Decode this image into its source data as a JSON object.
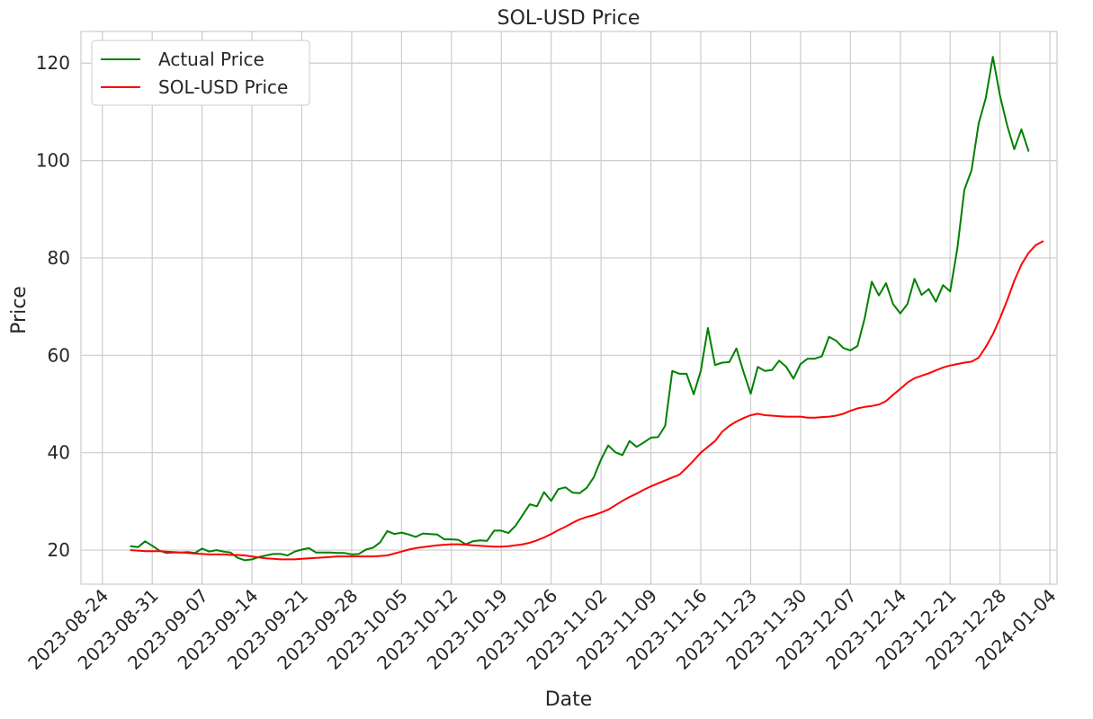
{
  "chart_data": {
    "type": "line",
    "title": "SOL-USD Price",
    "xlabel": "Date",
    "ylabel": "Price",
    "x_ticks": [
      "2023-08-24",
      "2023-08-31",
      "2023-09-07",
      "2023-09-14",
      "2023-09-21",
      "2023-09-28",
      "2023-10-05",
      "2023-10-12",
      "2023-10-19",
      "2023-10-26",
      "2023-11-02",
      "2023-11-09",
      "2023-11-16",
      "2023-11-23",
      "2023-11-30",
      "2023-12-07",
      "2023-12-14",
      "2023-12-21",
      "2023-12-28",
      "2024-01-04"
    ],
    "y_ticks": [
      20,
      40,
      60,
      80,
      100,
      120
    ],
    "xlim": [
      "2023-08-21",
      "2024-01-05"
    ],
    "ylim": [
      13,
      126.5
    ],
    "grid": true,
    "legend_position": "top-left",
    "series": [
      {
        "name": "Actual Price",
        "color": "#008000",
        "points": [
          [
            "2023-08-28",
            20.8
          ],
          [
            "2023-08-29",
            20.6
          ],
          [
            "2023-08-30",
            21.8
          ],
          [
            "2023-08-31",
            20.9
          ],
          [
            "2023-09-01",
            19.9
          ],
          [
            "2023-09-02",
            19.4
          ],
          [
            "2023-09-03",
            19.5
          ],
          [
            "2023-09-04",
            19.5
          ],
          [
            "2023-09-05",
            19.6
          ],
          [
            "2023-09-06",
            19.4
          ],
          [
            "2023-09-07",
            20.3
          ],
          [
            "2023-09-08",
            19.7
          ],
          [
            "2023-09-09",
            20.0
          ],
          [
            "2023-09-10",
            19.7
          ],
          [
            "2023-09-11",
            19.5
          ],
          [
            "2023-09-12",
            18.4
          ],
          [
            "2023-09-13",
            17.9
          ],
          [
            "2023-09-14",
            18.1
          ],
          [
            "2023-09-15",
            18.6
          ],
          [
            "2023-09-16",
            18.9
          ],
          [
            "2023-09-17",
            19.2
          ],
          [
            "2023-09-18",
            19.2
          ],
          [
            "2023-09-19",
            18.9
          ],
          [
            "2023-09-20",
            19.7
          ],
          [
            "2023-09-21",
            20.1
          ],
          [
            "2023-09-22",
            20.4
          ],
          [
            "2023-09-23",
            19.5
          ],
          [
            "2023-09-24",
            19.5
          ],
          [
            "2023-09-25",
            19.5
          ],
          [
            "2023-09-26",
            19.4
          ],
          [
            "2023-09-27",
            19.4
          ],
          [
            "2023-09-28",
            19.1
          ],
          [
            "2023-09-29",
            19.2
          ],
          [
            "2023-09-30",
            20.1
          ],
          [
            "2023-10-01",
            20.5
          ],
          [
            "2023-10-02",
            21.6
          ],
          [
            "2023-10-03",
            23.9
          ],
          [
            "2023-10-04",
            23.3
          ],
          [
            "2023-10-05",
            23.6
          ],
          [
            "2023-10-06",
            23.2
          ],
          [
            "2023-10-07",
            22.7
          ],
          [
            "2023-10-08",
            23.4
          ],
          [
            "2023-10-09",
            23.3
          ],
          [
            "2023-10-10",
            23.2
          ],
          [
            "2023-10-11",
            22.2
          ],
          [
            "2023-10-12",
            22.2
          ],
          [
            "2023-10-13",
            22.1
          ],
          [
            "2023-10-14",
            21.2
          ],
          [
            "2023-10-15",
            21.8
          ],
          [
            "2023-10-16",
            22.0
          ],
          [
            "2023-10-17",
            21.9
          ],
          [
            "2023-10-18",
            24.0
          ],
          [
            "2023-10-19",
            24.0
          ],
          [
            "2023-10-20",
            23.5
          ],
          [
            "2023-10-21",
            25.0
          ],
          [
            "2023-10-22",
            27.2
          ],
          [
            "2023-10-23",
            29.4
          ],
          [
            "2023-10-24",
            29.0
          ],
          [
            "2023-10-25",
            31.9
          ],
          [
            "2023-10-26",
            30.1
          ],
          [
            "2023-10-27",
            32.5
          ],
          [
            "2023-10-28",
            32.9
          ],
          [
            "2023-10-29",
            31.8
          ],
          [
            "2023-10-30",
            31.7
          ],
          [
            "2023-10-31",
            32.8
          ],
          [
            "2023-11-01",
            35.0
          ],
          [
            "2023-11-02",
            38.6
          ],
          [
            "2023-11-03",
            41.5
          ],
          [
            "2023-11-04",
            40.1
          ],
          [
            "2023-11-05",
            39.5
          ],
          [
            "2023-11-06",
            42.4
          ],
          [
            "2023-11-07",
            41.2
          ],
          [
            "2023-11-08",
            42.1
          ],
          [
            "2023-11-09",
            43.1
          ],
          [
            "2023-11-10",
            43.2
          ],
          [
            "2023-11-11",
            45.5
          ],
          [
            "2023-11-12",
            56.8
          ],
          [
            "2023-11-13",
            56.2
          ],
          [
            "2023-11-14",
            56.2
          ],
          [
            "2023-11-15",
            52.0
          ],
          [
            "2023-11-16",
            56.8
          ],
          [
            "2023-11-17",
            65.6
          ],
          [
            "2023-11-18",
            58.0
          ],
          [
            "2023-11-19",
            58.5
          ],
          [
            "2023-11-20",
            58.6
          ],
          [
            "2023-11-21",
            61.4
          ],
          [
            "2023-11-22",
            56.6
          ],
          [
            "2023-11-23",
            52.1
          ],
          [
            "2023-11-24",
            57.6
          ],
          [
            "2023-11-25",
            56.8
          ],
          [
            "2023-11-26",
            57.0
          ],
          [
            "2023-11-27",
            58.9
          ],
          [
            "2023-11-28",
            57.6
          ],
          [
            "2023-11-29",
            55.2
          ],
          [
            "2023-11-30",
            58.2
          ],
          [
            "2023-12-01",
            59.3
          ],
          [
            "2023-12-02",
            59.3
          ],
          [
            "2023-12-03",
            59.8
          ],
          [
            "2023-12-04",
            63.8
          ],
          [
            "2023-12-05",
            63.0
          ],
          [
            "2023-12-06",
            61.5
          ],
          [
            "2023-12-07",
            61.0
          ],
          [
            "2023-12-08",
            61.9
          ],
          [
            "2023-12-09",
            67.6
          ],
          [
            "2023-12-10",
            75.1
          ],
          [
            "2023-12-11",
            72.3
          ],
          [
            "2023-12-12",
            74.8
          ],
          [
            "2023-12-13",
            70.5
          ],
          [
            "2023-12-14",
            68.6
          ],
          [
            "2023-12-15",
            70.5
          ],
          [
            "2023-12-16",
            75.7
          ],
          [
            "2023-12-17",
            72.4
          ],
          [
            "2023-12-18",
            73.6
          ],
          [
            "2023-12-19",
            71.0
          ],
          [
            "2023-12-20",
            74.4
          ],
          [
            "2023-12-21",
            73.1
          ],
          [
            "2023-12-22",
            81.8
          ],
          [
            "2023-12-23",
            94.0
          ],
          [
            "2023-12-24",
            98.0
          ],
          [
            "2023-12-25",
            107.6
          ],
          [
            "2023-12-26",
            112.8
          ],
          [
            "2023-12-27",
            121.3
          ],
          [
            "2023-12-28",
            113.3
          ],
          [
            "2023-12-29",
            107.2
          ],
          [
            "2023-12-30",
            102.3
          ],
          [
            "2023-12-31",
            106.4
          ],
          [
            "2024-01-01",
            102.0
          ]
        ]
      },
      {
        "name": "SOL-USD Price",
        "color": "#ff0000",
        "points": [
          [
            "2023-08-28",
            20.0
          ],
          [
            "2023-08-29",
            19.9
          ],
          [
            "2023-08-30",
            19.8
          ],
          [
            "2023-08-31",
            19.8
          ],
          [
            "2023-09-01",
            19.8
          ],
          [
            "2023-09-02",
            19.7
          ],
          [
            "2023-09-03",
            19.6
          ],
          [
            "2023-09-04",
            19.5
          ],
          [
            "2023-09-05",
            19.4
          ],
          [
            "2023-09-06",
            19.3
          ],
          [
            "2023-09-07",
            19.2
          ],
          [
            "2023-09-08",
            19.1
          ],
          [
            "2023-09-09",
            19.1
          ],
          [
            "2023-09-10",
            19.1
          ],
          [
            "2023-09-11",
            19.0
          ],
          [
            "2023-09-12",
            19.0
          ],
          [
            "2023-09-13",
            18.9
          ],
          [
            "2023-09-14",
            18.7
          ],
          [
            "2023-09-15",
            18.5
          ],
          [
            "2023-09-16",
            18.3
          ],
          [
            "2023-09-17",
            18.2
          ],
          [
            "2023-09-18",
            18.1
          ],
          [
            "2023-09-19",
            18.1
          ],
          [
            "2023-09-20",
            18.1
          ],
          [
            "2023-09-21",
            18.2
          ],
          [
            "2023-09-22",
            18.3
          ],
          [
            "2023-09-23",
            18.4
          ],
          [
            "2023-09-24",
            18.5
          ],
          [
            "2023-09-25",
            18.6
          ],
          [
            "2023-09-26",
            18.7
          ],
          [
            "2023-09-27",
            18.7
          ],
          [
            "2023-09-28",
            18.7
          ],
          [
            "2023-09-29",
            18.7
          ],
          [
            "2023-09-30",
            18.7
          ],
          [
            "2023-10-01",
            18.7
          ],
          [
            "2023-10-02",
            18.8
          ],
          [
            "2023-10-03",
            18.9
          ],
          [
            "2023-10-04",
            19.3
          ],
          [
            "2023-10-05",
            19.7
          ],
          [
            "2023-10-06",
            20.1
          ],
          [
            "2023-10-07",
            20.4
          ],
          [
            "2023-10-08",
            20.6
          ],
          [
            "2023-10-09",
            20.8
          ],
          [
            "2023-10-10",
            21.0
          ],
          [
            "2023-10-11",
            21.1
          ],
          [
            "2023-10-12",
            21.2
          ],
          [
            "2023-10-13",
            21.2
          ],
          [
            "2023-10-14",
            21.1
          ],
          [
            "2023-10-15",
            21.0
          ],
          [
            "2023-10-16",
            20.9
          ],
          [
            "2023-10-17",
            20.8
          ],
          [
            "2023-10-18",
            20.7
          ],
          [
            "2023-10-19",
            20.7
          ],
          [
            "2023-10-20",
            20.8
          ],
          [
            "2023-10-21",
            21.0
          ],
          [
            "2023-10-22",
            21.2
          ],
          [
            "2023-10-23",
            21.5
          ],
          [
            "2023-10-24",
            22.0
          ],
          [
            "2023-10-25",
            22.6
          ],
          [
            "2023-10-26",
            23.3
          ],
          [
            "2023-10-27",
            24.1
          ],
          [
            "2023-10-28",
            24.8
          ],
          [
            "2023-10-29",
            25.6
          ],
          [
            "2023-10-30",
            26.3
          ],
          [
            "2023-10-31",
            26.8
          ],
          [
            "2023-11-01",
            27.2
          ],
          [
            "2023-11-02",
            27.7
          ],
          [
            "2023-11-03",
            28.3
          ],
          [
            "2023-11-04",
            29.2
          ],
          [
            "2023-11-05",
            30.1
          ],
          [
            "2023-11-06",
            30.9
          ],
          [
            "2023-11-07",
            31.6
          ],
          [
            "2023-11-08",
            32.4
          ],
          [
            "2023-11-09",
            33.1
          ],
          [
            "2023-11-10",
            33.7
          ],
          [
            "2023-11-11",
            34.3
          ],
          [
            "2023-11-12",
            34.9
          ],
          [
            "2023-11-13",
            35.5
          ],
          [
            "2023-11-14",
            36.9
          ],
          [
            "2023-11-15",
            38.4
          ],
          [
            "2023-11-16",
            40.0
          ],
          [
            "2023-11-17",
            41.2
          ],
          [
            "2023-11-18",
            42.4
          ],
          [
            "2023-11-19",
            44.3
          ],
          [
            "2023-11-20",
            45.5
          ],
          [
            "2023-11-21",
            46.4
          ],
          [
            "2023-11-22",
            47.1
          ],
          [
            "2023-11-23",
            47.7
          ],
          [
            "2023-11-24",
            48.0
          ],
          [
            "2023-11-25",
            47.7
          ],
          [
            "2023-11-26",
            47.6
          ],
          [
            "2023-11-27",
            47.5
          ],
          [
            "2023-11-28",
            47.4
          ],
          [
            "2023-11-29",
            47.4
          ],
          [
            "2023-11-30",
            47.4
          ],
          [
            "2023-12-01",
            47.2
          ],
          [
            "2023-12-02",
            47.2
          ],
          [
            "2023-12-03",
            47.3
          ],
          [
            "2023-12-04",
            47.4
          ],
          [
            "2023-12-05",
            47.6
          ],
          [
            "2023-12-06",
            48.0
          ],
          [
            "2023-12-07",
            48.6
          ],
          [
            "2023-12-08",
            49.1
          ],
          [
            "2023-12-09",
            49.4
          ],
          [
            "2023-12-10",
            49.6
          ],
          [
            "2023-12-11",
            49.9
          ],
          [
            "2023-12-12",
            50.6
          ],
          [
            "2023-12-13",
            51.9
          ],
          [
            "2023-12-14",
            53.1
          ],
          [
            "2023-12-15",
            54.4
          ],
          [
            "2023-12-16",
            55.3
          ],
          [
            "2023-12-17",
            55.8
          ],
          [
            "2023-12-18",
            56.3
          ],
          [
            "2023-12-19",
            56.9
          ],
          [
            "2023-12-20",
            57.5
          ],
          [
            "2023-12-21",
            57.9
          ],
          [
            "2023-12-22",
            58.2
          ],
          [
            "2023-12-23",
            58.5
          ],
          [
            "2023-12-24",
            58.7
          ],
          [
            "2023-12-25",
            59.5
          ],
          [
            "2023-12-26",
            61.7
          ],
          [
            "2023-12-27",
            64.3
          ],
          [
            "2023-12-28",
            67.6
          ],
          [
            "2023-12-29",
            71.3
          ],
          [
            "2023-12-30",
            75.3
          ],
          [
            "2023-12-31",
            78.6
          ],
          [
            "2024-01-01",
            81.0
          ],
          [
            "2024-01-02",
            82.6
          ],
          [
            "2024-01-03",
            83.4
          ]
        ]
      }
    ]
  }
}
